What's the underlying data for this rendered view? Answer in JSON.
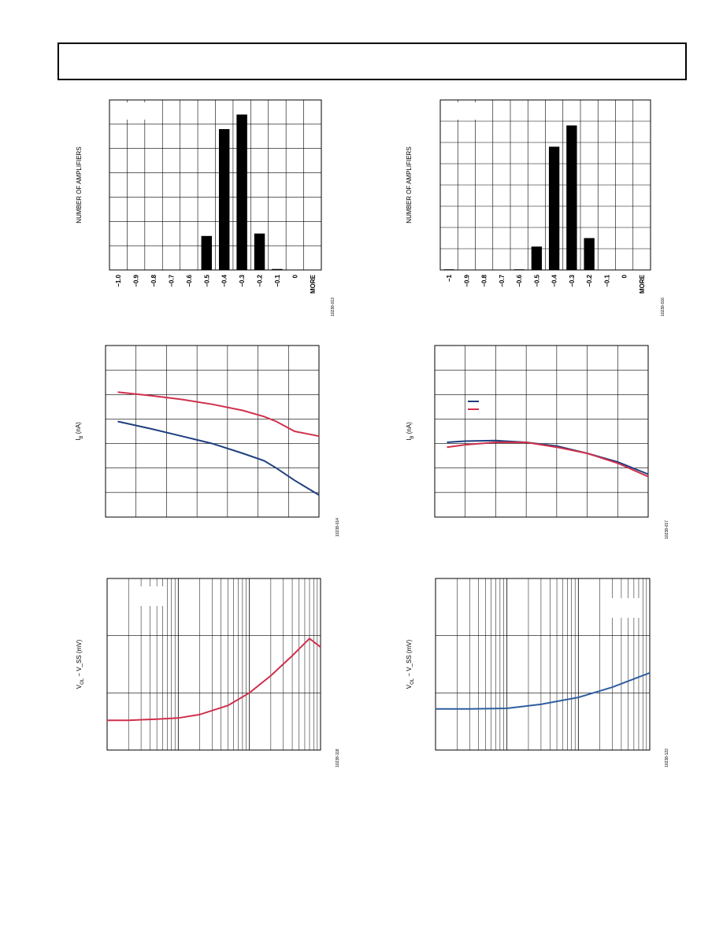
{
  "colors": {
    "axis": "#000000",
    "bar": "#000000",
    "blue": "#1f3f7f",
    "red": "#d0304c",
    "blue_light": "#2f5ea0"
  },
  "chart_data": [
    {
      "type": "bar",
      "id": "hist-left",
      "ylabel": "NUMBER OF AMPLIFIERS",
      "categories": [
        "−1.0",
        "−0.9",
        "−0.8",
        "−0.7",
        "−0.6",
        "−0.5",
        "−0.4",
        "−0.3",
        "−0.2",
        "−0.1",
        "0",
        "MORE"
      ],
      "values": [
        0,
        0,
        0,
        0,
        0,
        14,
        58,
        64,
        15,
        0.4,
        0,
        0
      ],
      "ylim": [
        0,
        70
      ],
      "yticks": 7,
      "code": "10238-013"
    },
    {
      "type": "bar",
      "id": "hist-right",
      "ylabel": "NUMBER OF AMPLIFIERS",
      "categories": [
        "−1",
        "−0.9",
        "−0.8",
        "−0.7",
        "−0.6",
        "−0.5",
        "−0.4",
        "−0.3",
        "−0.2",
        "−0.1",
        "0",
        "MORE"
      ],
      "values": [
        0.3,
        0,
        0,
        0,
        0.3,
        11,
        58,
        68,
        15,
        0,
        0,
        0
      ],
      "ylim": [
        0,
        80
      ],
      "yticks": 8,
      "code": "10238-016"
    },
    {
      "type": "line",
      "id": "ib-left",
      "ylabel": "I_B (nA)",
      "xlim": [
        0,
        7
      ],
      "ylim": [
        0,
        7
      ],
      "series": [
        {
          "color": "red",
          "x": [
            0.4,
            1.5,
            2.5,
            3.5,
            4.5,
            5.2,
            5.6,
            6.2,
            7.0
          ],
          "y": [
            5.1,
            4.95,
            4.8,
            4.6,
            4.35,
            4.1,
            3.9,
            3.5,
            3.3
          ]
        },
        {
          "color": "blue",
          "x": [
            0.4,
            1.5,
            2.5,
            3.5,
            4.5,
            5.2,
            5.6,
            6.2,
            7.0
          ],
          "y": [
            3.9,
            3.6,
            3.3,
            3.0,
            2.6,
            2.3,
            2.0,
            1.5,
            0.9
          ]
        }
      ],
      "code": "10238-014"
    },
    {
      "type": "line",
      "id": "ib-right",
      "ylabel": "I_B (nA)",
      "xlim": [
        0,
        7
      ],
      "ylim": [
        0,
        7
      ],
      "series": [
        {
          "color": "blue",
          "x": [
            0.4,
            1.0,
            2.0,
            3.0,
            4.0,
            5.0,
            6.0,
            7.0
          ],
          "y": [
            3.05,
            3.1,
            3.12,
            3.05,
            2.9,
            2.6,
            2.25,
            1.75
          ]
        },
        {
          "color": "red",
          "x": [
            0.4,
            1.0,
            2.0,
            3.0,
            4.0,
            5.0,
            6.0,
            7.0
          ],
          "y": [
            2.85,
            2.95,
            3.05,
            3.05,
            2.85,
            2.6,
            2.2,
            1.65
          ]
        }
      ],
      "code": "10238-017"
    },
    {
      "type": "line",
      "id": "vol-left",
      "ylabel": "V_OL − V_SS (mV)",
      "xscale": "log",
      "xlim": [
        1,
        1000
      ],
      "ylim": [
        0,
        3
      ],
      "series": [
        {
          "color": "red",
          "x": [
            1,
            2,
            3,
            5,
            10,
            20,
            50,
            100,
            200,
            400,
            700,
            1000
          ],
          "y": [
            0.52,
            0.52,
            0.53,
            0.54,
            0.56,
            0.62,
            0.78,
            1.0,
            1.3,
            1.65,
            1.95,
            1.8
          ]
        }
      ],
      "code": "10238-118"
    },
    {
      "type": "line",
      "id": "vol-right",
      "ylabel": "V_OL − V_SS (mV)",
      "xscale": "log",
      "xlim": [
        1,
        1000
      ],
      "ylim": [
        0,
        3
      ],
      "series": [
        {
          "color": "blue_light",
          "x": [
            1,
            3,
            10,
            30,
            100,
            300,
            1000
          ],
          "y": [
            0.72,
            0.72,
            0.73,
            0.8,
            0.92,
            1.1,
            1.35
          ]
        }
      ],
      "code": "10238-122"
    }
  ]
}
